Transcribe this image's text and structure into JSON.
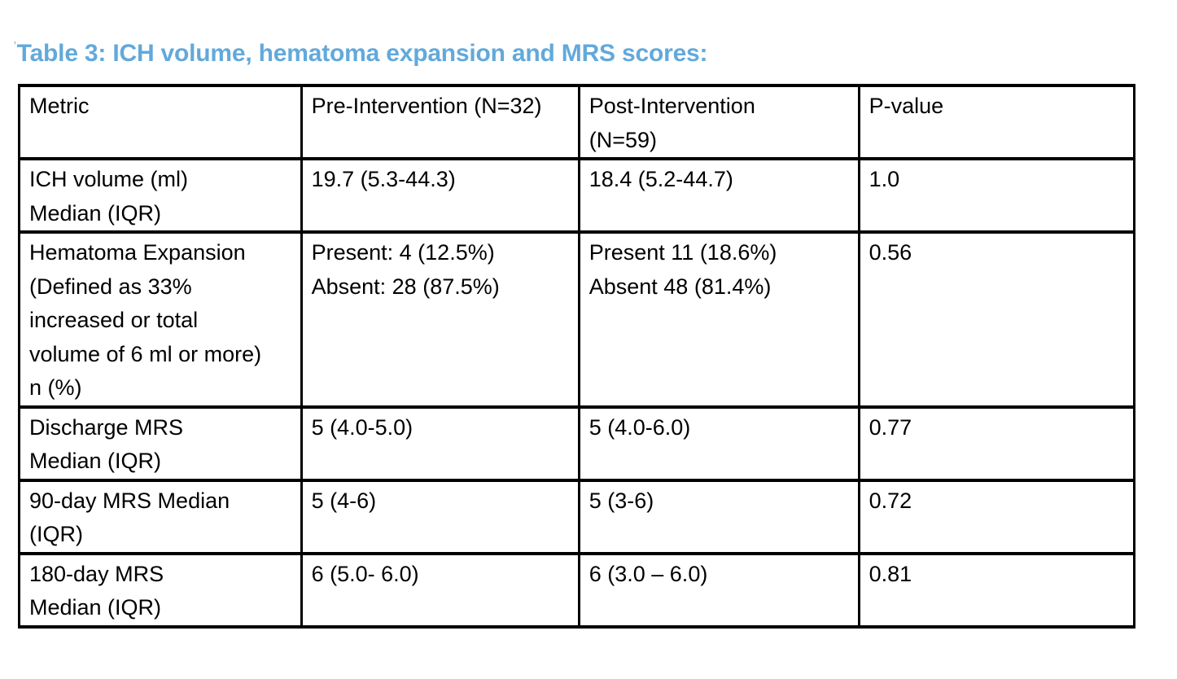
{
  "title": {
    "mark": "'",
    "text": "Table 3: ICH volume, hematoma expansion and MRS scores:",
    "color": "#62a9db"
  },
  "table": {
    "border_color": "#000000",
    "header": {
      "metric": [
        "Metric"
      ],
      "pre": [
        "Pre-Intervention (N=32)"
      ],
      "post": [
        "Post-Intervention",
        "(N=59)"
      ],
      "p": [
        "P-value"
      ]
    },
    "rows": [
      {
        "metric": [
          "ICH volume (ml)",
          "Median (IQR)"
        ],
        "pre": [
          "19.7 (5.3-44.3)"
        ],
        "post": [
          "18.4 (5.2-44.7)"
        ],
        "p": [
          "1.0"
        ]
      },
      {
        "metric": [
          "Hematoma Expansion",
          "(Defined as 33%",
          "increased or total",
          "volume of 6 ml or more)",
          "n (%)"
        ],
        "pre": [
          "Present: 4 (12.5%)",
          "Absent: 28 (87.5%)"
        ],
        "post": [
          "Present 11 (18.6%)",
          "Absent 48 (81.4%)"
        ],
        "p": [
          "0.56"
        ]
      },
      {
        "metric": [
          "Discharge MRS",
          "Median (IQR)"
        ],
        "pre": [
          "5 (4.0-5.0)"
        ],
        "post": [
          "5 (4.0-6.0)"
        ],
        "p": [
          "0.77"
        ]
      },
      {
        "metric": [
          "90-day MRS Median",
          "(IQR)"
        ],
        "pre": [
          "5 (4-6)"
        ],
        "post": [
          "5 (3-6)"
        ],
        "p": [
          "0.72"
        ]
      },
      {
        "metric": [
          "180-day MRS",
          "Median (IQR)"
        ],
        "pre": [
          "6 (5.0- 6.0)"
        ],
        "post": [
          "6 (3.0 – 6.0)"
        ],
        "p": [
          "0.81"
        ]
      }
    ]
  }
}
